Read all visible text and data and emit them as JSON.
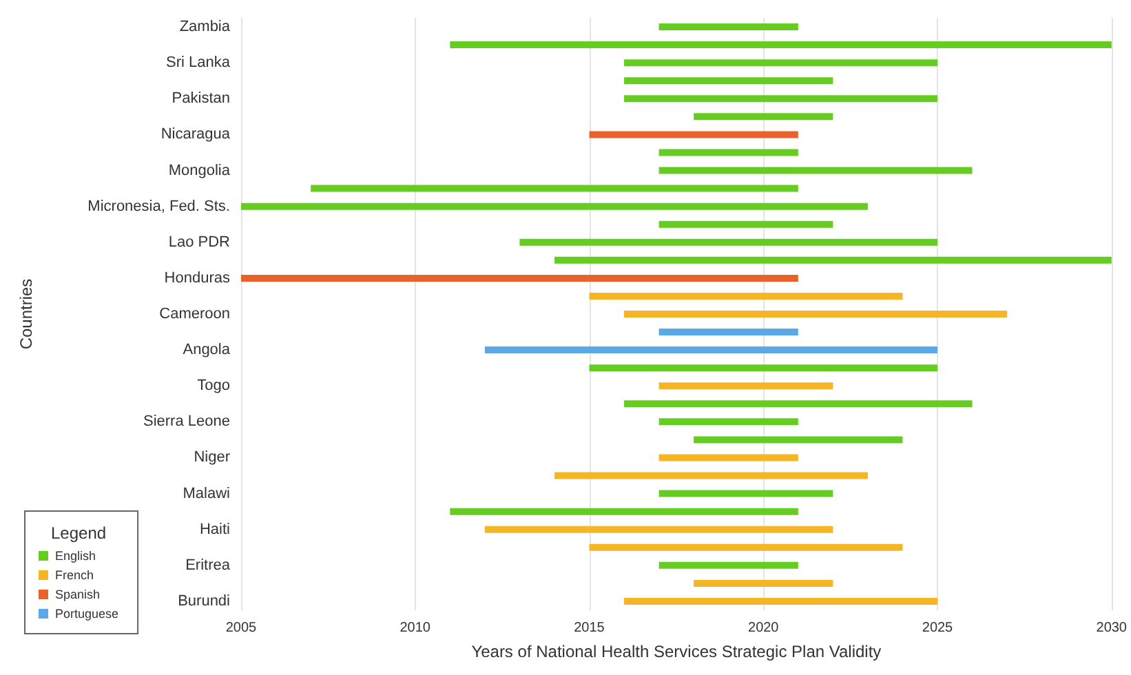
{
  "chart_data": {
    "type": "bar",
    "orientation": "horizontal",
    "xlabel": "Years of National Health Services Strategic Plan Validity",
    "ylabel": "Countries",
    "legend_title": "Legend",
    "legend": "bottom left",
    "grid": "x",
    "categories": [
      "Zambia",
      null,
      "Sri Lanka",
      null,
      "Pakistan",
      null,
      "Nicaragua",
      null,
      "Mongolia",
      null,
      "Micronesia, Fed. Sts.",
      null,
      "Lao PDR",
      null,
      "Honduras",
      null,
      "Cameroon",
      null,
      "Angola",
      null,
      "Togo",
      null,
      "Sierra Leone",
      null,
      "Niger",
      null,
      "Malawi",
      null,
      "Haiti",
      null,
      "Eritrea",
      null,
      "Burundi"
    ],
    "xlim": [
      2005,
      2030
    ],
    "xticks": [
      2005,
      2010,
      2015,
      2020,
      2025,
      2030
    ],
    "series": [
      {
        "name": "English",
        "color": "#66cc22",
        "base": [
          2017,
          2011,
          2016,
          2016,
          2016,
          2018,
          null,
          2017,
          2017,
          2007,
          2005,
          2017,
          2013,
          2014,
          null,
          null,
          null,
          null,
          null,
          2015,
          null,
          2016,
          2017,
          2018,
          null,
          null,
          2017,
          2011,
          null,
          null,
          2017,
          null,
          null
        ],
        "values": [
          4,
          19,
          9,
          6,
          9,
          4,
          null,
          4,
          9,
          14,
          18,
          5,
          12,
          16,
          null,
          null,
          null,
          null,
          null,
          10,
          null,
          10,
          4,
          6,
          null,
          null,
          5,
          10,
          null,
          null,
          4,
          null,
          null
        ]
      },
      {
        "name": "French",
        "color": "#f5b525",
        "base": [
          null,
          null,
          null,
          null,
          null,
          null,
          null,
          null,
          null,
          null,
          null,
          null,
          null,
          null,
          null,
          2015,
          2016,
          null,
          null,
          null,
          2017,
          null,
          null,
          null,
          2017,
          2014,
          null,
          null,
          2012,
          2015,
          null,
          2018,
          2016
        ],
        "values": [
          null,
          null,
          null,
          null,
          null,
          null,
          null,
          null,
          null,
          null,
          null,
          null,
          null,
          null,
          null,
          9,
          11,
          null,
          null,
          null,
          5,
          null,
          null,
          null,
          4,
          9,
          null,
          null,
          10,
          9,
          null,
          4,
          9
        ]
      },
      {
        "name": "Spanish",
        "color": "#e8622a",
        "base": [
          null,
          null,
          null,
          null,
          null,
          null,
          2015,
          null,
          null,
          null,
          null,
          null,
          null,
          null,
          2005,
          null,
          null,
          null,
          null,
          null,
          null,
          null,
          null,
          null,
          null,
          null,
          null,
          null,
          null,
          null,
          null,
          null,
          null
        ],
        "values": [
          null,
          null,
          null,
          null,
          null,
          null,
          6,
          null,
          null,
          null,
          null,
          null,
          null,
          null,
          16,
          null,
          null,
          null,
          null,
          null,
          null,
          null,
          null,
          null,
          null,
          null,
          null,
          null,
          null,
          null,
          null,
          null,
          null
        ]
      },
      {
        "name": "Portuguese",
        "color": "#5aa8e8",
        "base": [
          null,
          null,
          null,
          null,
          null,
          null,
          null,
          null,
          null,
          null,
          null,
          null,
          null,
          null,
          null,
          null,
          null,
          2017,
          2012,
          null,
          null,
          null,
          null,
          null,
          null,
          null,
          null,
          null,
          null,
          null,
          null,
          null,
          null
        ],
        "values": [
          null,
          null,
          null,
          null,
          null,
          null,
          null,
          null,
          null,
          null,
          null,
          null,
          null,
          null,
          null,
          null,
          null,
          4,
          13,
          null,
          null,
          null,
          null,
          null,
          null,
          null,
          null,
          null,
          null,
          null,
          null,
          null,
          null
        ]
      }
    ]
  }
}
